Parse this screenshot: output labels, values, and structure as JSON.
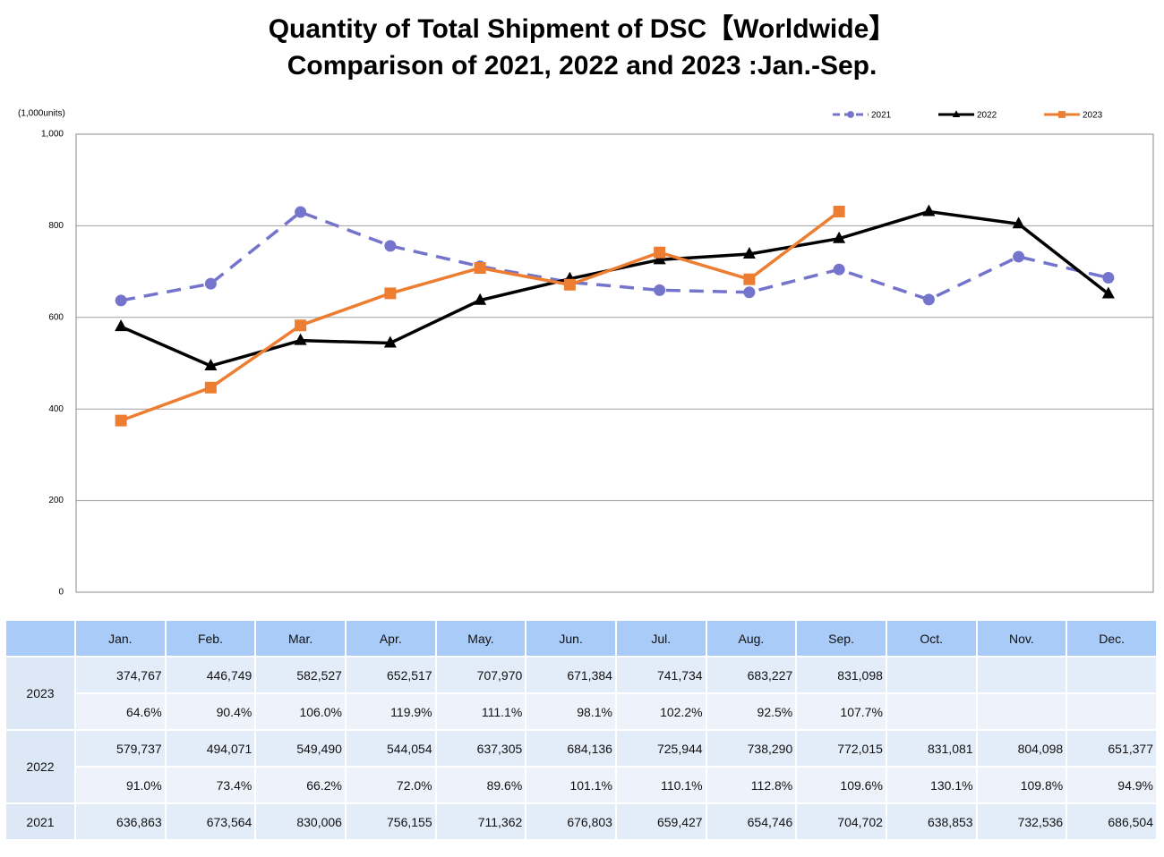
{
  "chart_data": {
    "type": "line",
    "title": "Quantity of Total Shipment of DSC【Worldwide】",
    "subtitle": "Comparison of 2021, 2022 and 2023 :Jan.-Sep.",
    "y_label": "(1,000units)",
    "categories": [
      "Jan.",
      "Feb.",
      "Mar.",
      "Apr.",
      "May.",
      "Jun.",
      "Jul.",
      "Aug.",
      "Sep.",
      "Oct.",
      "Nov.",
      "Dec."
    ],
    "ylim": [
      0,
      1000
    ],
    "yticks": [
      0,
      200,
      400,
      600,
      800,
      {
        "value": 1000,
        "label": "1,000"
      }
    ],
    "grid": true,
    "legend": "top-right",
    "series": [
      {
        "name": "2021",
        "color": "#7474cc",
        "dash": true,
        "marker": "circle",
        "values": [
          636.863,
          673.564,
          830.006,
          756.155,
          711.362,
          676.803,
          659.427,
          654.746,
          704.702,
          638.853,
          732.536,
          686.504
        ]
      },
      {
        "name": "2022",
        "color": "#000000",
        "dash": false,
        "marker": "triangle",
        "values": [
          579.737,
          494.071,
          549.49,
          544.054,
          637.305,
          684.136,
          725.944,
          738.29,
          772.015,
          831.081,
          804.098,
          651.377
        ]
      },
      {
        "name": "2023",
        "color": "#ed7d31",
        "dash": false,
        "marker": "square",
        "values": [
          374.767,
          446.749,
          582.527,
          652.517,
          707.97,
          671.384,
          741.734,
          683.227,
          831.098,
          null,
          null,
          null
        ]
      }
    ]
  },
  "table": {
    "groups": [
      {
        "label": "2023",
        "rows": [
          [
            "374,767",
            "446,749",
            "582,527",
            "652,517",
            "707,970",
            "671,384",
            "741,734",
            "683,227",
            "831,098"
          ],
          [
            "64.6%",
            "90.4%",
            "106.0%",
            "119.9%",
            "111.1%",
            "98.1%",
            "102.2%",
            "92.5%",
            "107.7%"
          ]
        ]
      },
      {
        "label": "2022",
        "rows": [
          [
            "579,737",
            "494,071",
            "549,490",
            "544,054",
            "637,305",
            "684,136",
            "725,944",
            "738,290",
            "772,015",
            "831,081",
            "804,098",
            "651,377"
          ],
          [
            "91.0%",
            "73.4%",
            "66.2%",
            "72.0%",
            "89.6%",
            "101.1%",
            "110.1%",
            "112.8%",
            "109.6%",
            "130.1%",
            "109.8%",
            "94.9%"
          ]
        ]
      },
      {
        "label": "2021",
        "rows": [
          [
            "636,863",
            "673,564",
            "830,006",
            "756,155",
            "711,362",
            "676,803",
            "659,427",
            "654,746",
            "704,702",
            "638,853",
            "732,536",
            "686,504"
          ]
        ]
      }
    ]
  }
}
